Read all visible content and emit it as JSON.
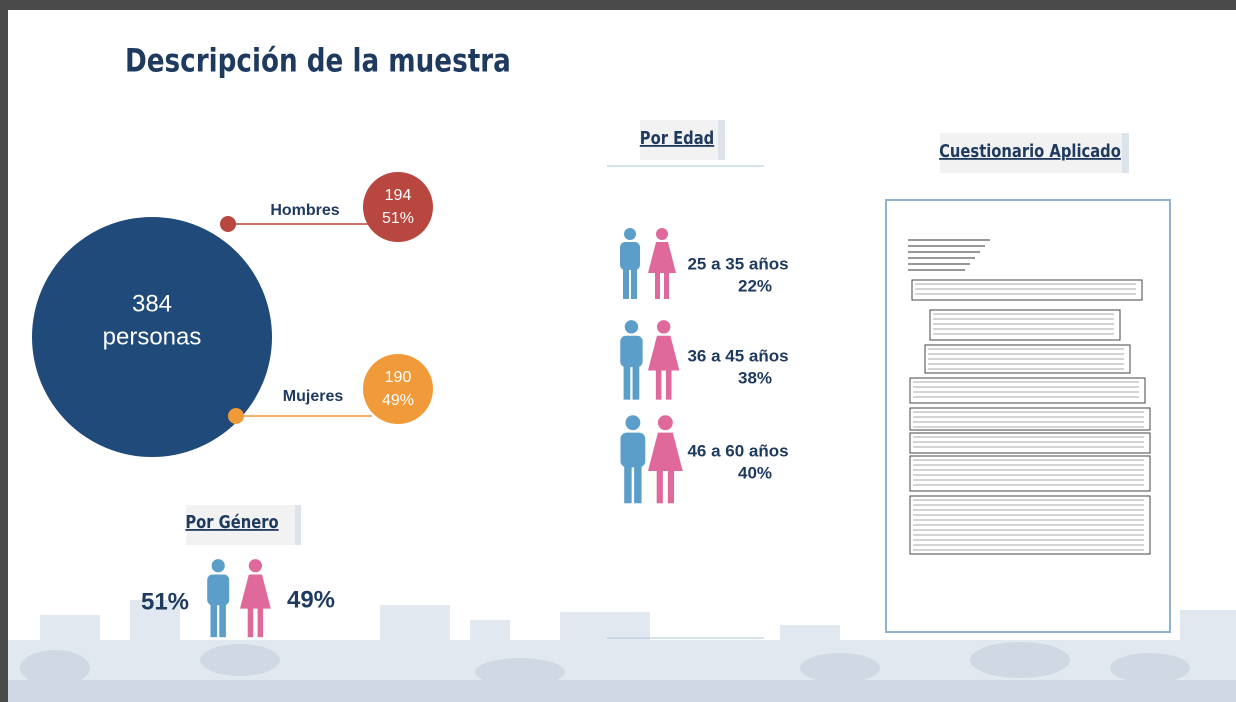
{
  "title": "Descripción de la muestra",
  "total": {
    "number": "384",
    "label": "personas"
  },
  "gender_split": [
    {
      "label": "Hombres",
      "count": "194",
      "percent": "51%"
    },
    {
      "label": "Mujeres",
      "count": "190",
      "percent": "49%"
    }
  ],
  "by_gender": {
    "heading": "Por Género",
    "men": "51%",
    "women": "49%"
  },
  "by_age": {
    "heading": "Por Edad",
    "groups": [
      {
        "range": "25 a 35 años",
        "percent": "22%"
      },
      {
        "range": "36 a 45 años",
        "percent": "38%"
      },
      {
        "range": "46 a 60 años",
        "percent": "40%"
      }
    ]
  },
  "questionnaire": {
    "heading": "Cuestionario Aplicado"
  }
}
